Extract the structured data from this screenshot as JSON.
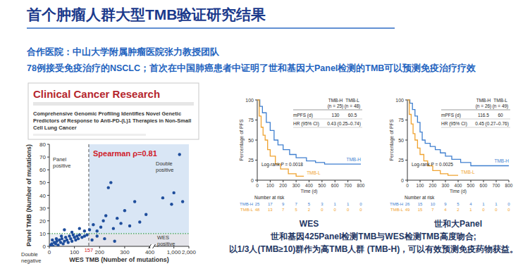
{
  "slide": {
    "title": "首个肿瘤人群大型TMB验证研究结果",
    "partner": "合作医院：中山大学附属肿瘤医院张力教授团队",
    "summary": "78例接受免疫治疗的NSCLC；首次在中国肺癌患者中证明了世和基因大Panel检测的TMB可以预测免疫治疗疗效",
    "journal": "Clinical Cancer Research",
    "article_title": "Comprehensive Genomic Profiling Identifies Novel Genetic Predictors of Response to Anti-PD-(L)1 Therapies in Non-Small Cell Lung Cancer",
    "conclusions": [
      "世和基因425Panel检测TMB与WES检测TMB高度吻合;",
      "以1/3人(TMB≥10)群作为高TMB人群 (TMB-H)，可以有效预测免疫药物获益。"
    ]
  },
  "chart_data": [
    {
      "type": "scatter",
      "x_label": "WES TMB (Number of mutations)",
      "y_label": "Panel TMB (Number of mutations)",
      "annotation": "Spearman ρ=0.81",
      "color": "#1f4e9c",
      "x": [
        5,
        10,
        15,
        20,
        25,
        30,
        35,
        40,
        45,
        50,
        55,
        60,
        65,
        70,
        75,
        80,
        85,
        90,
        95,
        100,
        105,
        110,
        115,
        120,
        130,
        140,
        150,
        12,
        28,
        48,
        60,
        90,
        120,
        140,
        170,
        190,
        220,
        260,
        160,
        175,
        190,
        205,
        215,
        225,
        235,
        245,
        255,
        270,
        285,
        300,
        320,
        340,
        360,
        385,
        600,
        900,
        1000,
        1300,
        1500
      ],
      "values": [
        1,
        2,
        0,
        3,
        2,
        4,
        1,
        5,
        3,
        6,
        2,
        4,
        7,
        5,
        3,
        8,
        6,
        4,
        9,
        7,
        5,
        8,
        6,
        9,
        7,
        8,
        9,
        5,
        6,
        8,
        13,
        11,
        14,
        12,
        5,
        8,
        6,
        4,
        13,
        17,
        12,
        15,
        20,
        24,
        46,
        50,
        14,
        22,
        18,
        28,
        16,
        35,
        19,
        25,
        38,
        33,
        42,
        72,
        35
      ],
      "xlim": [
        0,
        2000
      ],
      "xticks": [
        0,
        100,
        200,
        300,
        400,
        {
          "value": 1000,
          "label": "1,000"
        },
        {
          "value": 2000,
          "label": "2,000"
        }
      ],
      "ylim": [
        0,
        80
      ],
      "yticks": [
        0,
        10,
        20,
        30,
        40,
        50,
        60,
        70,
        80
      ],
      "x_threshold": {
        "value": 157,
        "label": "157"
      },
      "y_threshold": 10,
      "region_labels": [
        "Panel positive",
        "Double positive",
        "Double negative",
        "WES positive"
      ]
    },
    {
      "type": "line",
      "line_style": "step",
      "title": "WES",
      "x_label": "Time (d)",
      "y_label": "Percentage of PFS",
      "xlim": [
        0,
        800
      ],
      "xticks": [
        0,
        100,
        200,
        300,
        400,
        500,
        600,
        700,
        800
      ],
      "ylim": [
        0,
        100
      ],
      "yticks": [
        0,
        25,
        50,
        75,
        100
      ],
      "series": [
        {
          "name": "TMB-H",
          "color": "#3f7fcf",
          "x": [
            0,
            20,
            40,
            70,
            100,
            130,
            160,
            200,
            250,
            300,
            380,
            450,
            520,
            800
          ],
          "values": [
            100,
            92,
            84,
            72,
            62,
            50,
            44,
            38,
            32,
            28,
            24,
            22,
            20,
            20
          ]
        },
        {
          "name": "TMB-L",
          "color": "#f0a22e",
          "x": [
            0,
            15,
            30,
            45,
            61,
            80,
            100,
            140,
            180,
            240,
            300,
            360
          ],
          "values": [
            100,
            80,
            66,
            56,
            50,
            38,
            30,
            20,
            14,
            8,
            5,
            5
          ]
        }
      ],
      "stats_table": {
        "columns": [
          {
            "name": "TMB-H",
            "n": "(n = 25)"
          },
          {
            "name": "TMB-L",
            "n": "(n = 48)"
          }
        ],
        "rows": [
          {
            "label": "mPFS (d)",
            "values": [
              "130",
              "60.5"
            ]
          },
          {
            "label": "HR (95% CI)",
            "values": [
              "0.43 (0.25–0.74)"
            ]
          }
        ]
      },
      "annotation": "Log-rank P = 0.0018",
      "risk_table": {
        "title": "Number at risk",
        "rows": [
          {
            "name": "TMB-H",
            "values": [
              25,
              17,
              9,
              7,
              5,
              3,
              1,
              1,
              0
            ]
          },
          {
            "name": "TMB-L",
            "values": [
              48,
              13,
              7,
              5,
              2,
              0,
              0,
              0,
              0
            ]
          }
        ]
      }
    },
    {
      "type": "line",
      "line_style": "step",
      "title": "世和大Panel",
      "x_label": "Time (d)",
      "y_label": "Percentage of PFS",
      "xlim": [
        0,
        800
      ],
      "xticks": [
        0,
        100,
        200,
        300,
        400,
        500,
        600,
        700,
        800
      ],
      "ylim": [
        0,
        100
      ],
      "yticks": [
        0,
        25,
        50,
        75,
        100
      ],
      "series": [
        {
          "name": "TMB-H",
          "color": "#3f7fcf",
          "x": [
            0,
            20,
            40,
            60,
            80,
            100,
            117,
            140,
            180,
            220,
            260,
            300,
            350,
            420,
            500,
            800
          ],
          "values": [
            100,
            96,
            88,
            80,
            72,
            60,
            50,
            46,
            42,
            38,
            34,
            30,
            26,
            22,
            18,
            18
          ]
        },
        {
          "name": "TMB-L",
          "color": "#f0a22e",
          "x": [
            0,
            15,
            30,
            45,
            60,
            80,
            100,
            130,
            160,
            200,
            260,
            320,
            400
          ],
          "values": [
            100,
            82,
            70,
            58,
            50,
            40,
            32,
            24,
            18,
            12,
            8,
            6,
            6
          ]
        }
      ],
      "stats_table": {
        "columns": [
          {
            "name": "TMB-H",
            "n": "(n = 26)"
          },
          {
            "name": "TMB-L",
            "n": "(n = 49)"
          }
        ],
        "rows": [
          {
            "label": "mPFS (d)",
            "values": [
              "116.5",
              "60"
            ]
          },
          {
            "label": "HR (95% CI)",
            "values": [
              "0.45 (0.27–0.76)"
            ]
          }
        ]
      },
      "annotation": "Log-rank P = 0.0025",
      "risk_table": {
        "title": "Number at risk",
        "rows": [
          {
            "name": "TMB-H",
            "values": [
              26,
              15,
              10,
              9,
              5,
              4,
              1,
              1,
              0
            ]
          },
          {
            "name": "TMB-L",
            "values": [
              49,
              15,
              7,
              4,
              2,
              1,
              0,
              0,
              0
            ]
          }
        ]
      }
    }
  ]
}
